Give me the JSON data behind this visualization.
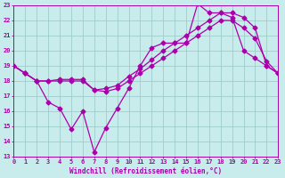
{
  "xlabel": "Windchill (Refroidissement éolien,°C)",
  "bg_color": "#c8ecec",
  "grid_color": "#a0cccc",
  "line_color": "#aa00aa",
  "xlim": [
    0,
    23
  ],
  "ylim": [
    13,
    23
  ],
  "ytick_vals": [
    13,
    14,
    15,
    16,
    17,
    18,
    19,
    20,
    21,
    22,
    23
  ],
  "xtick_vals": [
    0,
    1,
    2,
    3,
    4,
    5,
    6,
    7,
    8,
    9,
    10,
    11,
    12,
    13,
    14,
    15,
    16,
    17,
    18,
    19,
    20,
    21,
    22,
    23
  ],
  "curve1_x": [
    0,
    1,
    2,
    3,
    4,
    5,
    6,
    7,
    8,
    9,
    10,
    11,
    12,
    13,
    14,
    15,
    16,
    17,
    18,
    19,
    20,
    21,
    22,
    23
  ],
  "curve1_y": [
    19,
    18.5,
    18,
    16.6,
    16.2,
    14.8,
    16.0,
    13.3,
    14.9,
    16.2,
    17.5,
    19.0,
    20.2,
    20.5,
    20.5,
    20.5,
    23.1,
    22.5,
    22.5,
    22.2,
    20.0,
    19.5,
    19.0,
    18.5
  ],
  "curve2_x": [
    0,
    1,
    2,
    3,
    4,
    5,
    6,
    7,
    8,
    9,
    10,
    11,
    12,
    13,
    14,
    15,
    16,
    17,
    18,
    19,
    20,
    21,
    22,
    23
  ],
  "curve2_y": [
    19,
    18.5,
    18.0,
    18.0,
    18.0,
    18.0,
    18.0,
    17.4,
    17.3,
    17.5,
    18.0,
    18.5,
    19.0,
    19.5,
    20.0,
    20.5,
    21.0,
    21.5,
    22.0,
    22.0,
    21.5,
    20.8,
    19.3,
    18.5
  ],
  "curve3_x": [
    0,
    1,
    2,
    3,
    4,
    5,
    6,
    7,
    8,
    9,
    10,
    11,
    12,
    13,
    14,
    15,
    16,
    17,
    18,
    19,
    20,
    21,
    22,
    23
  ],
  "curve3_y": [
    19,
    18.5,
    18.0,
    18.0,
    18.1,
    18.1,
    18.1,
    17.4,
    17.5,
    17.7,
    18.3,
    18.8,
    19.4,
    20.0,
    20.5,
    21.0,
    21.5,
    22.0,
    22.5,
    22.5,
    22.2,
    21.5,
    19.0,
    18.5
  ]
}
